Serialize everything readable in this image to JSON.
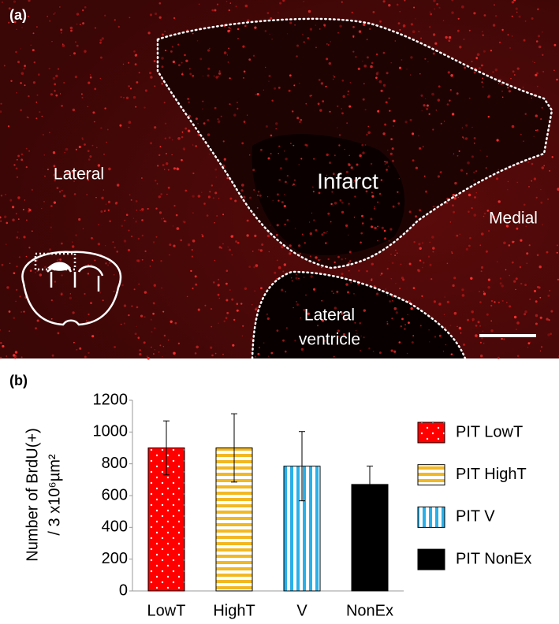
{
  "panel_a": {
    "label": "(a)",
    "annotations": [
      "Lateral",
      "Infarct",
      "Medial",
      "Lateral",
      "ventricle"
    ]
  },
  "chart_data": {
    "type": "bar",
    "panel_label": "(b)",
    "y_label": [
      "Number of BrdU(+)",
      "/ 3 x10⁶µm²"
    ],
    "categories": [
      "LowT",
      "HighT",
      "V",
      "NonEx"
    ],
    "series": [
      {
        "name": "PIT LowT",
        "color": "#ff0000",
        "pattern": "dots",
        "values": [
          900,
          null,
          null,
          null
        ],
        "errors": [
          170,
          null,
          null,
          null
        ]
      },
      {
        "name": "PIT HighT",
        "color": "#f2b824",
        "pattern": "hstripes",
        "values": [
          null,
          900,
          null,
          null
        ],
        "errors": [
          null,
          215,
          null,
          null
        ]
      },
      {
        "name": "PIT V",
        "color": "#2ab0e8",
        "pattern": "vstripes",
        "values": [
          null,
          null,
          785,
          null
        ],
        "errors": [
          null,
          null,
          218,
          null
        ]
      },
      {
        "name": "PIT NonEx",
        "color": "#000000",
        "pattern": "solid",
        "values": [
          null,
          null,
          null,
          670
        ],
        "errors": [
          null,
          null,
          null,
          115
        ]
      }
    ],
    "ylim": [
      0,
      1200
    ],
    "yticks": [
      0,
      200,
      400,
      600,
      800,
      1000,
      1200
    ],
    "grid": false,
    "legend": "right"
  }
}
